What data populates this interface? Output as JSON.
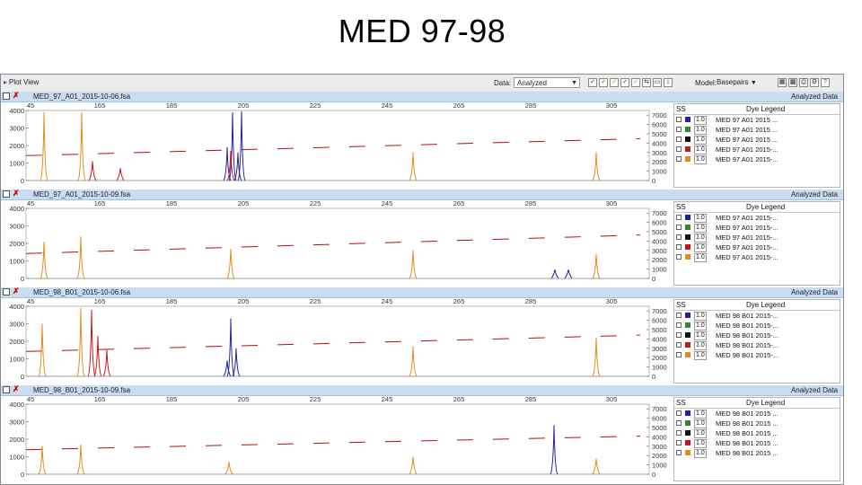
{
  "slide_title": "MED 97-98",
  "toolbar": {
    "plot_view_label": "Plot View",
    "data_label": "Data:",
    "data_value": "Analyzed",
    "model_label": "Model:",
    "model_value": "Basepairs"
  },
  "colors": {
    "blue": "#1f1fa8",
    "green": "#2a8c2a",
    "black": "#111111",
    "red": "#c81414",
    "orange": "#e58a17",
    "sizing_marker": "#b01010"
  },
  "x_axis_ticks": [
    "45",
    "165",
    "185",
    "205",
    "225",
    "245",
    "265",
    "285",
    "305"
  ],
  "panels": [
    {
      "name": "MED_97_A01_2015-10-06.fsa",
      "status": "Analyzed Data",
      "y_ticks": [
        "4000",
        "3000",
        "2000",
        "1000",
        "0"
      ],
      "right_ticks": [
        "7000",
        "6000",
        "5000",
        "4000",
        "3000",
        "2000",
        "1000",
        "0"
      ],
      "legend_ss": "SS",
      "legend_title": "Dye Legend",
      "legend_rows": [
        {
          "color": "blue",
          "size": "1.0",
          "label": "MED 97 A01 2015 ..."
        },
        {
          "color": "green",
          "size": "1.0",
          "label": "MED 97 A01 2015 ..."
        },
        {
          "color": "black",
          "size": "1.0",
          "label": "MED 97 A01 2015 ..."
        },
        {
          "color": "red",
          "size": "1.0",
          "label": "MED 97 A01 2015-..."
        },
        {
          "color": "orange",
          "size": "1.0",
          "label": "MED 97 A01 2015-..."
        }
      ],
      "peaks": [
        {
          "x": 48,
          "y": 3900,
          "color": "orange"
        },
        {
          "x": 90,
          "y": 3900,
          "color": "orange"
        },
        {
          "x": 102,
          "y": 1100,
          "color": "red"
        },
        {
          "x": 133,
          "y": 700,
          "color": "red"
        },
        {
          "x": 252,
          "y": 1900,
          "color": "blue"
        },
        {
          "x": 258,
          "y": 3900,
          "color": "blue"
        },
        {
          "x": 264,
          "y": 1600,
          "color": "blue"
        },
        {
          "x": 268,
          "y": 3950,
          "color": "blue"
        },
        {
          "x": 256,
          "y": 1700,
          "color": "red"
        },
        {
          "x": 459,
          "y": 1600,
          "color": "orange"
        },
        {
          "x": 663,
          "y": 1600,
          "color": "orange"
        }
      ],
      "sizing_line": [
        1420,
        2390
      ]
    },
    {
      "name": "MED_97_A01_2015-10-09.fsa",
      "status": "Analyzed Data",
      "y_ticks": [
        "4000",
        "3000",
        "2000",
        "1000",
        "0"
      ],
      "right_ticks": [
        "7000",
        "6000",
        "5000",
        "4000",
        "3000",
        "2000",
        "1000",
        "0"
      ],
      "legend_ss": "SS",
      "legend_title": "Dye Legend",
      "legend_rows": [
        {
          "color": "blue",
          "size": "1.0",
          "label": "MED 97 A01 2015-..."
        },
        {
          "color": "green",
          "size": "1.0",
          "label": "MED 97 A01 2015-..."
        },
        {
          "color": "black",
          "size": "1.0",
          "label": "MED 97 A01 2015-..."
        },
        {
          "color": "red",
          "size": "1.0",
          "label": "MED 97 A01 2015-..."
        },
        {
          "color": "orange",
          "size": "1.0",
          "label": "MED 97 A01 2015-..."
        }
      ],
      "peaks": [
        {
          "x": 48,
          "y": 2100,
          "color": "orange"
        },
        {
          "x": 89,
          "y": 2400,
          "color": "orange"
        },
        {
          "x": 256,
          "y": 1700,
          "color": "orange"
        },
        {
          "x": 459,
          "y": 1600,
          "color": "orange"
        },
        {
          "x": 617,
          "y": 500,
          "color": "blue"
        },
        {
          "x": 632,
          "y": 500,
          "color": "blue"
        },
        {
          "x": 663,
          "y": 1400,
          "color": "orange"
        }
      ],
      "sizing_line": [
        1420,
        2480
      ]
    },
    {
      "name": "MED_98_B01_2015-10-06.fsa",
      "status": "Analyzed Data",
      "y_ticks": [
        "4000",
        "3000",
        "2000",
        "1000",
        "0"
      ],
      "right_ticks": [
        "7000",
        "6000",
        "5000",
        "4000",
        "3000",
        "2000",
        "1000",
        "0"
      ],
      "legend_ss": "SS",
      "legend_title": "Dye Legend",
      "legend_rows": [
        {
          "color": "blue",
          "size": "1.0",
          "label": "MED 98 B01 2015-..."
        },
        {
          "color": "green",
          "size": "1.0",
          "label": "MED 98 B01 2015-..."
        },
        {
          "color": "black",
          "size": "1.0",
          "label": "MED 98 B01 2015-..."
        },
        {
          "color": "red",
          "size": "1.0",
          "label": "MED 98 B01 2015-..."
        },
        {
          "color": "orange",
          "size": "1.0",
          "label": "MED 98 B01 2015-..."
        }
      ],
      "peaks": [
        {
          "x": 46,
          "y": 3000,
          "color": "orange"
        },
        {
          "x": 89,
          "y": 3900,
          "color": "orange"
        },
        {
          "x": 101,
          "y": 3800,
          "color": "red"
        },
        {
          "x": 108,
          "y": 2300,
          "color": "red"
        },
        {
          "x": 118,
          "y": 1500,
          "color": "red"
        },
        {
          "x": 252,
          "y": 900,
          "color": "blue"
        },
        {
          "x": 256,
          "y": 3300,
          "color": "blue"
        },
        {
          "x": 262,
          "y": 1600,
          "color": "blue"
        },
        {
          "x": 459,
          "y": 1700,
          "color": "orange"
        },
        {
          "x": 663,
          "y": 2200,
          "color": "orange"
        }
      ],
      "sizing_line": [
        1420,
        2350
      ]
    },
    {
      "name": "MED_98_B01_2015-10-09.fsa",
      "status": "Analyzed Data",
      "y_ticks": [
        "4000",
        "3000",
        "2000",
        "1000",
        "0"
      ],
      "right_ticks": [
        "7000",
        "6000",
        "5000",
        "4000",
        "3000",
        "2000",
        "1000",
        "0"
      ],
      "legend_ss": "SS",
      "legend_title": "Dye Legend",
      "legend_rows": [
        {
          "color": "blue",
          "size": "1.0",
          "label": "MED 98 B01 2015 ..."
        },
        {
          "color": "green",
          "size": "1.0",
          "label": "MED 98 B01 2015 ..."
        },
        {
          "color": "black",
          "size": "1.0",
          "label": "MED 98 B01 2015 ..."
        },
        {
          "color": "red",
          "size": "1.0",
          "label": "MED 98 B01 2015 ..."
        },
        {
          "color": "orange",
          "size": "1.0",
          "label": "MED 98 B01 2015 ..."
        }
      ],
      "peaks": [
        {
          "x": 46,
          "y": 1600,
          "color": "orange"
        },
        {
          "x": 89,
          "y": 1700,
          "color": "orange"
        },
        {
          "x": 254,
          "y": 700,
          "color": "orange"
        },
        {
          "x": 459,
          "y": 1000,
          "color": "orange"
        },
        {
          "x": 616,
          "y": 2800,
          "color": "blue"
        },
        {
          "x": 663,
          "y": 900,
          "color": "orange"
        }
      ],
      "sizing_line": [
        1400,
        2180
      ]
    }
  ]
}
